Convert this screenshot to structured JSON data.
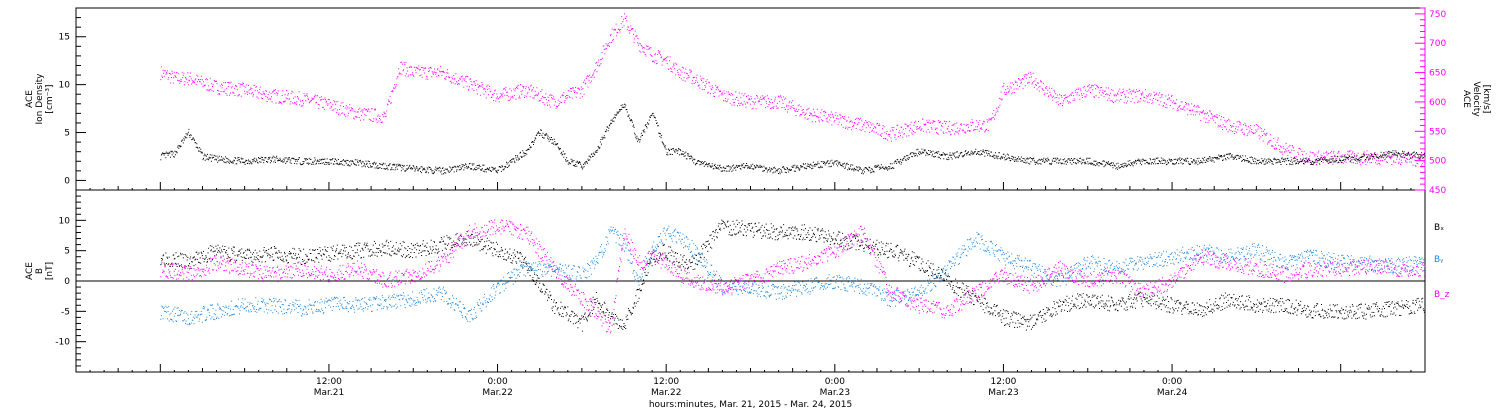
{
  "chart_data": [
    {
      "type": "scatter",
      "panel": "top",
      "left_axis_label": [
        "ACE",
        "Ion Density",
        "[cm⁻³]"
      ],
      "right_axis_label": [
        "ACE",
        "Velocity",
        "[km/s]"
      ],
      "ylim": [
        -1,
        18
      ],
      "y_ticks": [
        0,
        5,
        10,
        15
      ],
      "y2lim": [
        450,
        760
      ],
      "y2_ticks": [
        450,
        500,
        550,
        600,
        650,
        700,
        750
      ],
      "series": [
        {
          "color": "#000000",
          "axis": "left",
          "x": [
            0,
            1,
            2,
            3,
            4,
            6,
            8,
            10,
            12,
            14,
            16,
            18,
            20,
            22,
            24,
            26,
            27,
            28,
            29,
            30,
            31,
            32,
            33,
            34,
            35,
            36,
            37,
            38,
            39,
            40,
            42,
            44,
            46,
            48,
            50,
            52,
            54,
            56,
            58,
            60,
            62,
            64,
            66,
            68,
            70,
            72,
            74,
            76,
            78,
            80,
            82,
            84,
            86,
            88,
            90
          ],
          "y": [
            2.5,
            2.8,
            5,
            2.5,
            2.2,
            2,
            2.2,
            2,
            2,
            1.8,
            1.5,
            1.2,
            1,
            1.5,
            1,
            3,
            5,
            4,
            2,
            1.5,
            3,
            6,
            8,
            4,
            7,
            3,
            3,
            2,
            1.5,
            1.2,
            1.5,
            1,
            1.5,
            1.8,
            1,
            1.5,
            3,
            2.5,
            3,
            2.5,
            2,
            2,
            2,
            1.5,
            2,
            2,
            2,
            2.5,
            2,
            2,
            2,
            2.2,
            2.5,
            2.8,
            2.5
          ]
        },
        {
          "color": "#ff00ff",
          "axis": "right",
          "x": [
            0,
            1,
            2,
            4,
            6,
            8,
            10,
            12,
            14,
            16,
            17,
            18,
            20,
            22,
            24,
            26,
            28,
            30,
            31,
            32,
            33,
            34,
            35,
            36,
            37,
            38,
            40,
            42,
            44,
            46,
            48,
            50,
            52,
            54,
            56,
            58,
            59,
            60,
            62,
            64,
            66,
            68,
            70,
            72,
            74,
            76,
            78,
            80,
            81,
            82,
            84,
            86,
            88,
            90
          ],
          "y": [
            650,
            640,
            640,
            625,
            620,
            610,
            605,
            595,
            580,
            575,
            660,
            650,
            650,
            630,
            610,
            620,
            600,
            620,
            660,
            710,
            740,
            700,
            680,
            670,
            650,
            640,
            610,
            600,
            600,
            580,
            570,
            560,
            545,
            560,
            555,
            560,
            560,
            620,
            640,
            600,
            620,
            610,
            610,
            600,
            580,
            560,
            550,
            520,
            510,
            505,
            505,
            505,
            505,
            500
          ]
        }
      ]
    },
    {
      "type": "scatter",
      "panel": "bottom",
      "left_axis_label": [
        "ACE",
        "B",
        "[nT]"
      ],
      "ylim": [
        -15,
        15
      ],
      "y_ticks": [
        -10,
        -5,
        0,
        5,
        10
      ],
      "zero_line": true,
      "legend": [
        "Bₓ",
        "Bᵧ",
        "B_z"
      ],
      "legend_placement": "right",
      "series": [
        {
          "name": "Bₓ",
          "color": "#000000",
          "x": [
            0,
            2,
            4,
            6,
            8,
            10,
            12,
            14,
            16,
            18,
            20,
            22,
            24,
            26,
            28,
            30,
            31,
            32,
            33,
            34,
            35,
            36,
            37,
            38,
            40,
            42,
            44,
            46,
            48,
            50,
            52,
            54,
            56,
            58,
            60,
            62,
            64,
            66,
            68,
            70,
            72,
            74,
            76,
            78,
            80,
            82,
            84,
            86,
            88,
            90
          ],
          "y": [
            4,
            3,
            5,
            4,
            4.5,
            4,
            4.5,
            5,
            5.5,
            5,
            6,
            7,
            5,
            3,
            -4,
            -7,
            -3,
            -6,
            -7,
            -2,
            4,
            5,
            3,
            3,
            9,
            8.5,
            8,
            8,
            7,
            6,
            5,
            3,
            0,
            -3,
            -6,
            -7,
            -4,
            -3,
            -4,
            -3,
            -4,
            -5,
            -3,
            -4,
            -4,
            -5,
            -5,
            -5,
            -4.5,
            -4
          ]
        },
        {
          "name": "Bᵧ",
          "color": "#1f88dd",
          "x": [
            0,
            2,
            4,
            6,
            8,
            10,
            12,
            14,
            16,
            18,
            20,
            22,
            24,
            26,
            28,
            30,
            31,
            32,
            33,
            34,
            35,
            36,
            37,
            38,
            40,
            42,
            44,
            46,
            48,
            50,
            52,
            54,
            56,
            58,
            60,
            62,
            64,
            66,
            68,
            70,
            72,
            74,
            76,
            78,
            80,
            82,
            84,
            86,
            88,
            90
          ],
          "y": [
            -5,
            -6,
            -5,
            -4,
            -4,
            -4.5,
            -4,
            -4,
            -3.5,
            -3,
            -2,
            -6,
            -1,
            2,
            2,
            1,
            3,
            8,
            6,
            0,
            5,
            8,
            7,
            5,
            -1,
            -1,
            -2,
            -1,
            0,
            -1,
            -3,
            -2,
            2,
            7,
            4,
            2,
            0,
            3,
            2,
            3,
            4,
            5,
            4,
            5,
            3,
            4,
            3,
            3,
            2.5,
            3
          ]
        },
        {
          "name": "B_z",
          "color": "#ff00ff",
          "x": [
            0,
            2,
            4,
            6,
            8,
            10,
            12,
            14,
            16,
            18,
            20,
            22,
            24,
            26,
            28,
            30,
            31,
            32,
            33,
            34,
            35,
            36,
            37,
            38,
            40,
            42,
            44,
            46,
            48,
            50,
            52,
            54,
            56,
            58,
            60,
            62,
            64,
            66,
            68,
            70,
            72,
            74,
            76,
            78,
            80,
            82,
            84,
            86,
            88,
            90
          ],
          "y": [
            2,
            1,
            3,
            2,
            1,
            2,
            1,
            2,
            0,
            1,
            3,
            8,
            9,
            8,
            2,
            -3,
            -5,
            -8,
            8,
            3,
            4,
            3,
            1,
            0,
            -1,
            0,
            2,
            3,
            5,
            8,
            -2,
            -4,
            -5,
            -2,
            1,
            -1,
            2,
            0,
            1,
            -2,
            0,
            4,
            3,
            2,
            1,
            2,
            2,
            2.5,
            2,
            2
          ]
        }
      ]
    }
  ],
  "x_axis": {
    "range_hours": [
      -6,
      90
    ],
    "major_ticks": [
      {
        "hour": 12,
        "time": "12:00",
        "date": "Mar.21"
      },
      {
        "hour": 24,
        "time": "0:00",
        "date": "Mar.22"
      },
      {
        "hour": 36,
        "time": "12:00",
        "date": "Mar.22"
      },
      {
        "hour": 48,
        "time": "0:00",
        "date": "Mar.23"
      },
      {
        "hour": 60,
        "time": "12:00",
        "date": "Mar.23"
      },
      {
        "hour": 72,
        "time": "0:00",
        "date": "Mar.24"
      }
    ],
    "label": "hours:minutes, Mar. 21, 2015 - Mar. 24, 2015"
  }
}
